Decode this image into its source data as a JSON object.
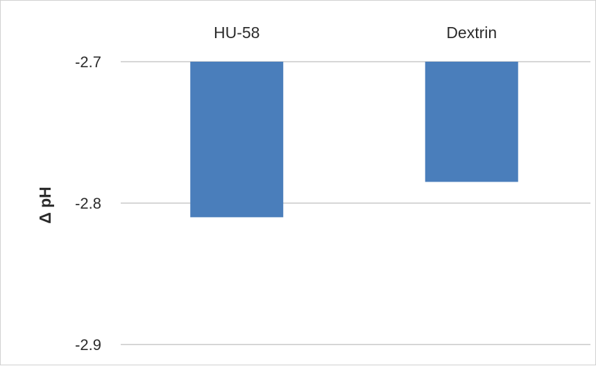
{
  "chart_data": {
    "type": "bar",
    "categories": [
      "HU-58",
      "Dextrin"
    ],
    "values": [
      -2.81,
      -2.785
    ],
    "xlabel": "",
    "ylabel": "Δ pH",
    "ylim": [
      -2.9,
      -2.7
    ],
    "yticks": [
      "-2.7",
      "-2.8",
      "-2.9"
    ],
    "grid": true,
    "bar_color": "#4a7ebb",
    "category_axis_position": "top"
  }
}
